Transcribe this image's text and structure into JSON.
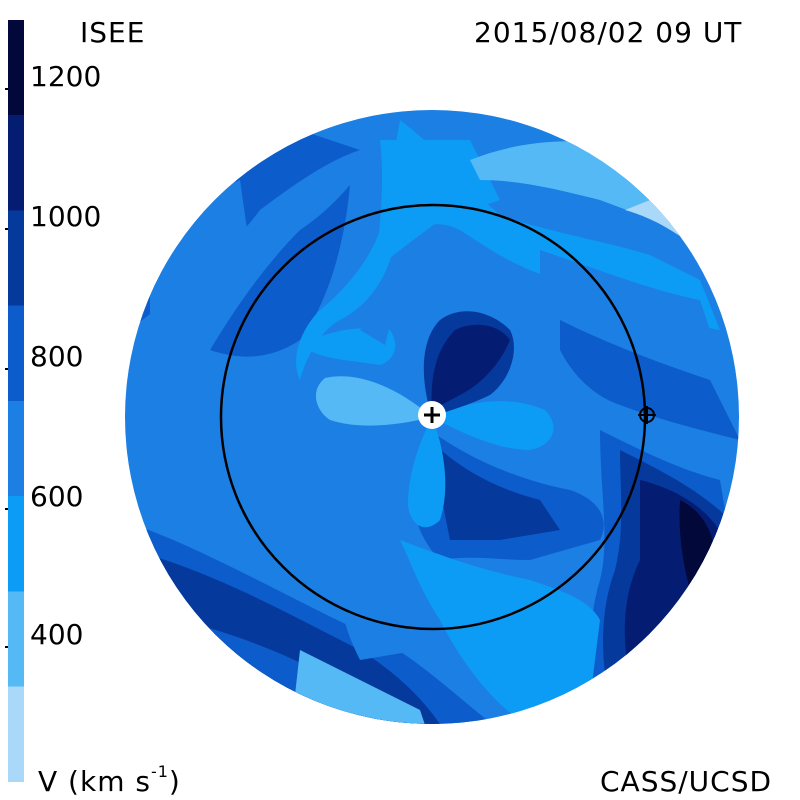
{
  "header": {
    "source": "ISEE",
    "datetime": "2015/08/02 09 UT",
    "credit": "CASS/UCSD"
  },
  "colorbar": {
    "title": "V (km s",
    "unit_exponent": "-1",
    "unit_close": ")",
    "ticks": [
      "1200",
      "1000",
      "800",
      "600",
      "400"
    ],
    "band_colors": [
      "#aad8f8",
      "#55b9f5",
      "#0d9cf5",
      "#1c7fe4",
      "#0d5ccb",
      "#06399c",
      "#041d72",
      "#02083a"
    ]
  },
  "map": {
    "palette": {
      "v300": "#aad8f8",
      "v400": "#55b9f5",
      "v500": "#0d9cf5",
      "v600": "#1c7fe4",
      "v700": "#0d5ccb",
      "v800": "#06399c",
      "v900": "#041d72",
      "v1100": "#02083a"
    }
  }
}
